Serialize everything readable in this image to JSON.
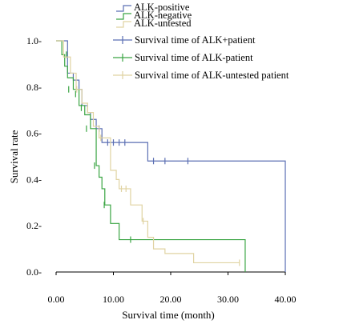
{
  "chart_data": {
    "type": "line",
    "subtype": "kaplan-meier",
    "xlabel": "Survival time (month)",
    "ylabel": "Survival rate",
    "xlim": [
      0,
      40
    ],
    "ylim": [
      0,
      1.0
    ],
    "xticks": [
      0,
      10,
      20,
      30,
      40
    ],
    "xtick_labels": [
      "0.00",
      "10.00",
      "20.00",
      "30.00",
      "40.00"
    ],
    "yticks": [
      0,
      0.2,
      0.4,
      0.6,
      0.8,
      1.0
    ],
    "ytick_labels": [
      "0.0-",
      "0.2-",
      "0.4-",
      "0.6-",
      "0.8-",
      "1.0-"
    ],
    "grid": false,
    "legend_position": "top-right",
    "legend": [
      {
        "label": "ALK-positive",
        "kind": "step",
        "series": 0
      },
      {
        "label": "ALK-negative",
        "kind": "step",
        "series": 1
      },
      {
        "label": "ALK-untested",
        "kind": "step",
        "series": 2
      },
      {
        "label": "Survival time of ALK+patient",
        "kind": "censor",
        "series": 0
      },
      {
        "label": "Survival time of ALK-patient",
        "kind": "censor",
        "series": 1
      },
      {
        "label": "Survival time of ALK-untested patient",
        "kind": "censor",
        "series": 2
      }
    ],
    "series": [
      {
        "color": "#5b6fb3",
        "steps": [
          [
            0,
            1.0
          ],
          [
            2,
            0.86
          ],
          [
            3,
            0.83
          ],
          [
            4,
            0.79
          ],
          [
            4.5,
            0.72
          ],
          [
            5.5,
            0.69
          ],
          [
            6,
            0.66
          ],
          [
            7,
            0.62
          ],
          [
            8,
            0.56
          ],
          [
            16,
            0.48
          ],
          [
            40,
            0.0
          ]
        ],
        "end": 40,
        "censored": [
          [
            7.5,
            0.62
          ],
          [
            9,
            0.56
          ],
          [
            10,
            0.56
          ],
          [
            11,
            0.56
          ],
          [
            12,
            0.56
          ],
          [
            17,
            0.48
          ],
          [
            19,
            0.48
          ],
          [
            23,
            0.48
          ]
        ]
      },
      {
        "color": "#3aa543",
        "steps": [
          [
            0,
            1.0
          ],
          [
            1,
            0.94
          ],
          [
            1.5,
            0.89
          ],
          [
            2,
            0.84
          ],
          [
            3,
            0.79
          ],
          [
            4,
            0.72
          ],
          [
            5,
            0.68
          ],
          [
            6,
            0.62
          ],
          [
            7,
            0.46
          ],
          [
            7.5,
            0.41
          ],
          [
            8,
            0.36
          ],
          [
            8.5,
            0.29
          ],
          [
            9.5,
            0.21
          ],
          [
            11,
            0.14
          ],
          [
            33,
            0.0
          ]
        ],
        "end": 33,
        "censored": [
          [
            1.8,
            0.94
          ],
          [
            2.2,
            0.79
          ],
          [
            3.4,
            0.77
          ],
          [
            4.4,
            0.71
          ],
          [
            5.3,
            0.62
          ],
          [
            6.7,
            0.46
          ],
          [
            8.4,
            0.29
          ],
          [
            13,
            0.14
          ]
        ]
      },
      {
        "color": "#e0d3a2",
        "steps": [
          [
            0,
            1.0
          ],
          [
            1.3,
            0.93
          ],
          [
            2.5,
            0.86
          ],
          [
            3.5,
            0.79
          ],
          [
            4.5,
            0.73
          ],
          [
            5.5,
            0.69
          ],
          [
            6.5,
            0.63
          ],
          [
            7.5,
            0.58
          ],
          [
            9.5,
            0.44
          ],
          [
            10.5,
            0.4
          ],
          [
            11,
            0.36
          ],
          [
            13,
            0.29
          ],
          [
            15,
            0.22
          ],
          [
            16,
            0.15
          ],
          [
            17,
            0.1
          ],
          [
            19,
            0.08
          ],
          [
            24,
            0.04
          ],
          [
            32,
            0.04
          ]
        ],
        "end": 32,
        "censored": [
          [
            3.6,
            0.79
          ],
          [
            5.5,
            0.7
          ],
          [
            7.8,
            0.58
          ],
          [
            11.4,
            0.36
          ],
          [
            12.2,
            0.36
          ],
          [
            15.2,
            0.22
          ],
          [
            32,
            0.04
          ]
        ]
      }
    ]
  }
}
